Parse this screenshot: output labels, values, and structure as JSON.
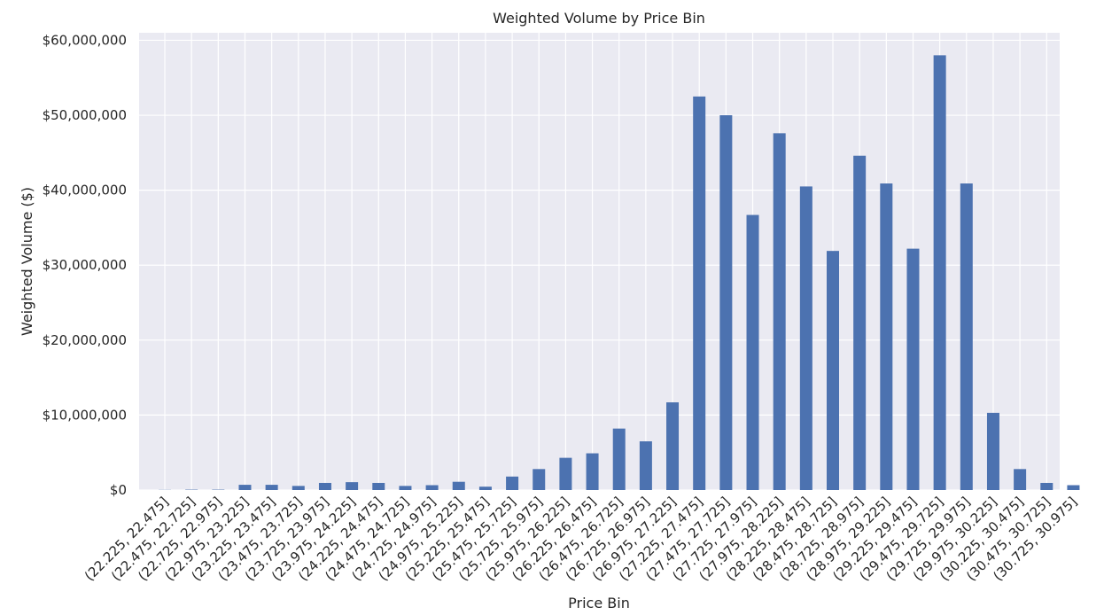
{
  "chart_data": {
    "type": "bar",
    "title": "Weighted Volume by Price Bin",
    "xlabel": "Price Bin",
    "ylabel": "Weighted Volume ($)",
    "ylim": [
      0,
      61000000
    ],
    "yticks": [
      0,
      10000000,
      20000000,
      30000000,
      40000000,
      50000000,
      60000000
    ],
    "ytick_labels": [
      "$0",
      "$10,000,000",
      "$20,000,000",
      "$30,000,000",
      "$40,000,000",
      "$50,000,000",
      "$60,000,000"
    ],
    "grid": true,
    "bar_color": "#4c72b0",
    "background_color": "#eaeaf2",
    "categories": [
      "(22.225, 22.475]",
      "(22.475, 22.725]",
      "(22.725, 22.975]",
      "(22.975, 23.225]",
      "(23.225, 23.475]",
      "(23.475, 23.725]",
      "(23.725, 23.975]",
      "(23.975, 24.225]",
      "(24.225, 24.475]",
      "(24.475, 24.725]",
      "(24.725, 24.975]",
      "(24.975, 25.225]",
      "(25.225, 25.475]",
      "(25.475, 25.725]",
      "(25.725, 25.975]",
      "(25.975, 26.225]",
      "(26.225, 26.475]",
      "(26.475, 26.725]",
      "(26.725, 26.975]",
      "(26.975, 27.225]",
      "(27.225, 27.475]",
      "(27.475, 27.725]",
      "(27.725, 27.975]",
      "(27.975, 28.225]",
      "(28.225, 28.475]",
      "(28.475, 28.725]",
      "(28.725, 28.975]",
      "(28.975, 29.225]",
      "(29.225, 29.475]",
      "(29.475, 29.725]",
      "(29.725, 29.975]",
      "(29.975, 30.225]",
      "(30.225, 30.475]",
      "(30.475, 30.725]",
      "(30.725, 30.975]"
    ],
    "values": [
      20000,
      50000,
      50000,
      700000,
      700000,
      550000,
      950000,
      1050000,
      950000,
      550000,
      650000,
      1100000,
      450000,
      1800000,
      2800000,
      4300000,
      4900000,
      8200000,
      6500000,
      11700000,
      52500000,
      50000000,
      36700000,
      47600000,
      40500000,
      31900000,
      44600000,
      40900000,
      32200000,
      58000000,
      40900000,
      10300000,
      2800000,
      950000,
      650000
    ]
  }
}
